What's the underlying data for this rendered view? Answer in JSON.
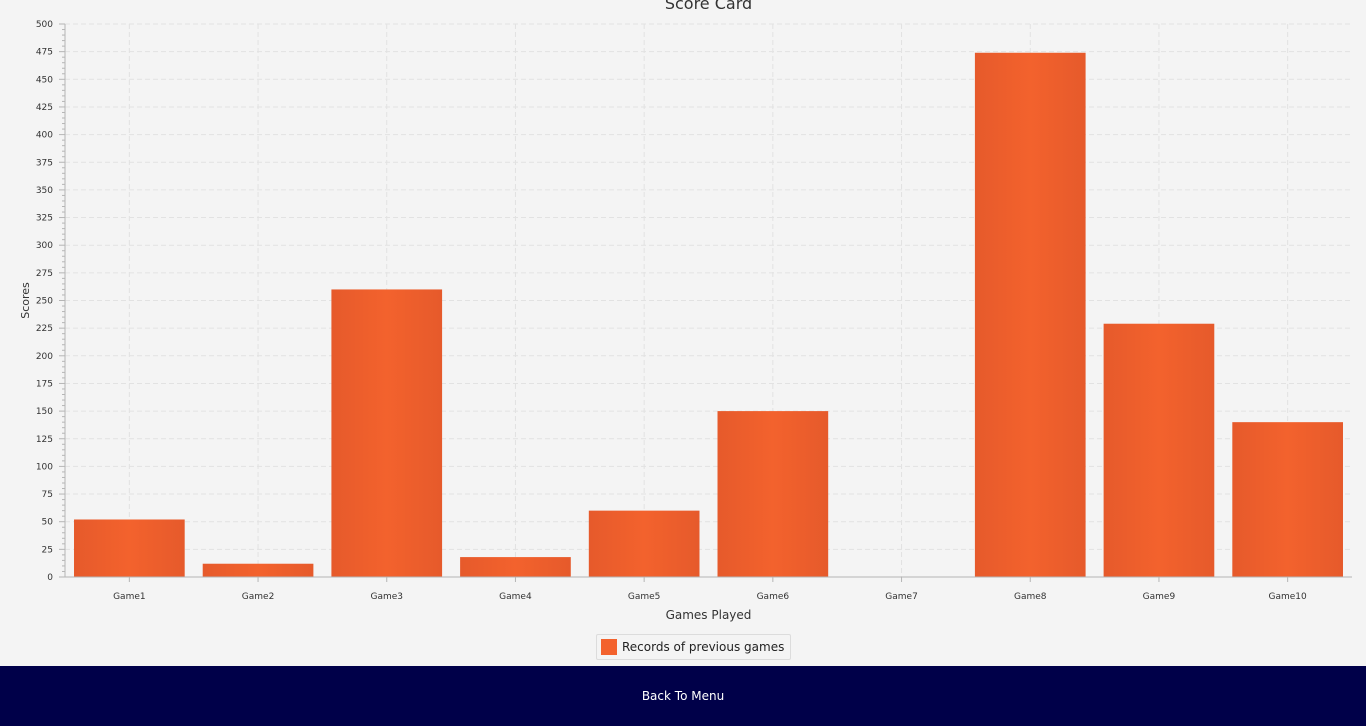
{
  "colors": {
    "bar": "#f3622d",
    "bar_dark": "#e65a2b",
    "background": "#f4f4f4",
    "grid": "#e2e2e2",
    "bottom_bar": "#000049",
    "button_text": "#ffffff"
  },
  "chart_data": {
    "type": "bar",
    "title": "Score Card",
    "xlabel": "Games Played",
    "ylabel": "Scores",
    "ylim": [
      0,
      500
    ],
    "ytick_step": 25,
    "grid": true,
    "legend_position": "bottom-center",
    "categories": [
      "Game1",
      "Game2",
      "Game3",
      "Game4",
      "Game5",
      "Game6",
      "Game7",
      "Game8",
      "Game9",
      "Game10"
    ],
    "series": [
      {
        "name": "Records of previous games",
        "values": [
          52,
          12,
          260,
          18,
          60,
          150,
          0,
          474,
          229,
          140
        ]
      }
    ]
  },
  "footer": {
    "back_button_label": "Back To Menu"
  }
}
